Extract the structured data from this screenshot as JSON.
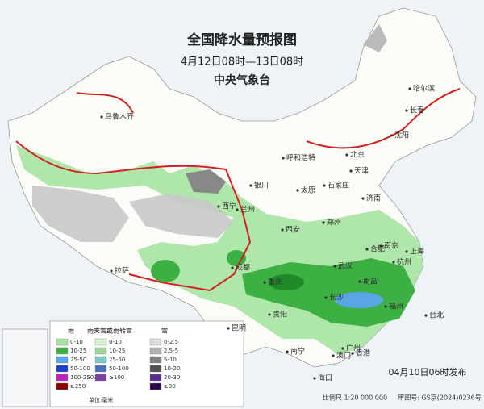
{
  "header": {
    "title": "全国降水量预报图",
    "subtitle": "4月12日08时—13日08时",
    "agency": "中央气象台"
  },
  "cities": [
    "哈尔滨",
    "长春",
    "沈阳",
    "乌鲁木齐",
    "呼和浩特",
    "北京",
    "天津",
    "石家庄",
    "太原",
    "银川",
    "西宁",
    "兰州",
    "济南",
    "郑州",
    "西安",
    "合肥",
    "南京",
    "上海",
    "杭州",
    "武汉",
    "成都",
    "重庆",
    "长沙",
    "南昌",
    "福州",
    "台北",
    "贵阳",
    "昆明",
    "拉萨",
    "南宁",
    "广州",
    "澳门",
    "香港",
    "海口"
  ],
  "legend": {
    "rain": {
      "label": "雨",
      "items": [
        "0-10",
        "10-25",
        "25-50",
        "50-100",
        "100-250",
        "≥250"
      ]
    },
    "sleet": {
      "label": "雨夹雪或雨转雪",
      "items": [
        "0-10",
        "10-25",
        "25-50",
        "50-100",
        "≥100"
      ]
    },
    "snow": {
      "label": "雪",
      "items": [
        "0-2.5",
        "2.5-5",
        "5-10",
        "10-20",
        "20-30",
        "≥30"
      ]
    },
    "unit": "单位:毫米"
  },
  "footer": {
    "issued": "04月10日06时发布",
    "scale": "比例尺 1:20 000 000",
    "approval": "审图号: GS京(2024)0236号"
  }
}
